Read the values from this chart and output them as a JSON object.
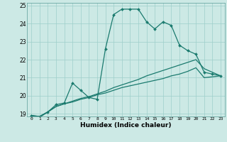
{
  "xlabel": "Humidex (Indice chaleur)",
  "bg_color": "#cce9e5",
  "grid_color": "#9ecfca",
  "line_color": "#1a7a6e",
  "xlim": [
    -0.5,
    23.5
  ],
  "ylim": [
    18.85,
    25.15
  ],
  "yticks": [
    19,
    20,
    21,
    22,
    23,
    24,
    25
  ],
  "xticks": [
    0,
    1,
    2,
    3,
    4,
    5,
    6,
    7,
    8,
    9,
    10,
    11,
    12,
    13,
    14,
    15,
    16,
    17,
    18,
    19,
    20,
    21,
    22,
    23
  ],
  "series1_x": [
    0,
    1,
    2,
    3,
    4,
    5,
    6,
    7,
    8,
    9,
    10,
    11,
    12,
    13,
    14,
    15,
    16,
    17,
    18,
    19,
    20,
    21,
    22,
    23
  ],
  "series1_y": [
    18.9,
    18.8,
    19.1,
    19.5,
    19.6,
    20.7,
    20.3,
    19.9,
    19.8,
    22.6,
    24.5,
    24.8,
    24.8,
    24.8,
    24.1,
    23.7,
    24.1,
    23.9,
    22.8,
    22.5,
    22.3,
    21.3,
    21.2,
    21.1
  ],
  "series2_x": [
    0,
    1,
    2,
    3,
    4,
    5,
    6,
    7,
    8,
    9,
    10,
    11,
    12,
    13,
    14,
    15,
    16,
    17,
    18,
    19,
    20,
    21,
    22,
    23
  ],
  "series2_y": [
    18.9,
    18.85,
    19.1,
    19.4,
    19.55,
    19.7,
    19.85,
    19.95,
    20.1,
    20.25,
    20.45,
    20.6,
    20.75,
    20.9,
    21.1,
    21.25,
    21.4,
    21.55,
    21.7,
    21.85,
    22.0,
    21.5,
    21.3,
    21.1
  ],
  "series3_x": [
    0,
    1,
    2,
    3,
    4,
    5,
    6,
    7,
    8,
    9,
    10,
    11,
    12,
    13,
    14,
    15,
    16,
    17,
    18,
    19,
    20,
    21,
    22,
    23
  ],
  "series3_y": [
    18.9,
    18.85,
    19.1,
    19.4,
    19.55,
    19.65,
    19.8,
    19.9,
    20.05,
    20.15,
    20.3,
    20.45,
    20.55,
    20.65,
    20.75,
    20.85,
    20.95,
    21.1,
    21.2,
    21.35,
    21.55,
    21.0,
    21.05,
    21.1
  ]
}
